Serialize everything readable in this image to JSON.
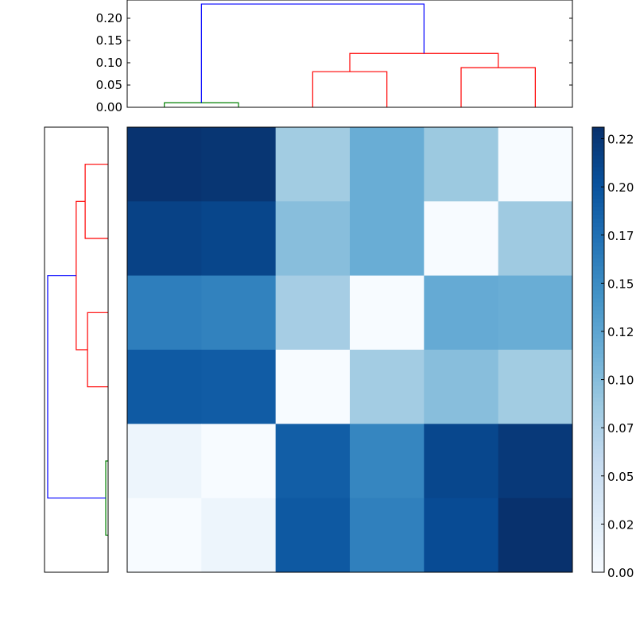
{
  "chart_data": [
    {
      "type": "dendrogram",
      "orientation": "top",
      "yticks": [
        "0.00",
        "0.05",
        "0.10",
        "0.15",
        "0.20"
      ],
      "ylim": [
        0,
        0.241
      ],
      "leaves": 6,
      "links": [
        {
          "leaves": [
            0,
            1
          ],
          "height": 0.01,
          "color": "#008000"
        },
        {
          "leaves": [
            2,
            3
          ],
          "height": 0.08,
          "color": "#ff0000"
        },
        {
          "leaves": [
            4,
            5
          ],
          "height": 0.089,
          "color": "#ff0000"
        },
        {
          "join": [
            [
              2,
              3
            ],
            [
              4,
              5
            ]
          ],
          "lower": [
            0.08,
            0.089
          ],
          "height": 0.121,
          "color": "#ff0000"
        },
        {
          "join": [
            [
              0,
              1
            ],
            [
              2,
              5
            ]
          ],
          "lower": [
            0.01,
            0.121
          ],
          "height": 0.232,
          "color": "#0000ff"
        }
      ]
    },
    {
      "type": "dendrogram",
      "orientation": "left",
      "xlim": [
        0.241,
        0
      ],
      "leaves": 6,
      "links": [
        {
          "leaves": [
            0,
            1
          ],
          "height": 0.087,
          "color": "#ff0000"
        },
        {
          "leaves": [
            2,
            3
          ],
          "height": 0.078,
          "color": "#ff0000"
        },
        {
          "leaves": [
            4,
            5
          ],
          "height": 0.009,
          "color": "#008000"
        },
        {
          "join": [
            [
              0,
              1
            ],
            [
              2,
              3
            ]
          ],
          "lower": [
            0.087,
            0.078
          ],
          "height": 0.121,
          "color": "#ff0000"
        },
        {
          "join": [
            [
              0,
              3
            ],
            [
              4,
              5
            ]
          ],
          "lower": [
            0.121,
            0.009
          ],
          "height": 0.229,
          "color": "#0000ff"
        }
      ]
    },
    {
      "type": "heatmap",
      "colormap": "Blues",
      "vmin": 0,
      "vmax": 0.231,
      "values": [
        [
          0.228,
          0.226,
          0.084,
          0.117,
          0.088,
          0.0
        ],
        [
          0.215,
          0.212,
          0.099,
          0.117,
          0.0,
          0.086
        ],
        [
          0.162,
          0.158,
          0.081,
          0.0,
          0.12,
          0.117
        ],
        [
          0.194,
          0.192,
          0.0,
          0.083,
          0.099,
          0.084
        ],
        [
          0.011,
          0.0,
          0.19,
          0.155,
          0.211,
          0.223
        ],
        [
          0.0,
          0.011,
          0.195,
          0.16,
          0.207,
          0.23
        ]
      ],
      "colorbar_ticks": [
        {
          "value": 0.0,
          "label": "0.00"
        },
        {
          "value": 0.025,
          "label": "0.02"
        },
        {
          "value": 0.05,
          "label": "0.05"
        },
        {
          "value": 0.075,
          "label": "0.07"
        },
        {
          "value": 0.1,
          "label": "0.10"
        },
        {
          "value": 0.125,
          "label": "0.12"
        },
        {
          "value": 0.15,
          "label": "0.15"
        },
        {
          "value": 0.175,
          "label": "0.17"
        },
        {
          "value": 0.2,
          "label": "0.20"
        },
        {
          "value": 0.225,
          "label": "0.22"
        }
      ]
    }
  ]
}
